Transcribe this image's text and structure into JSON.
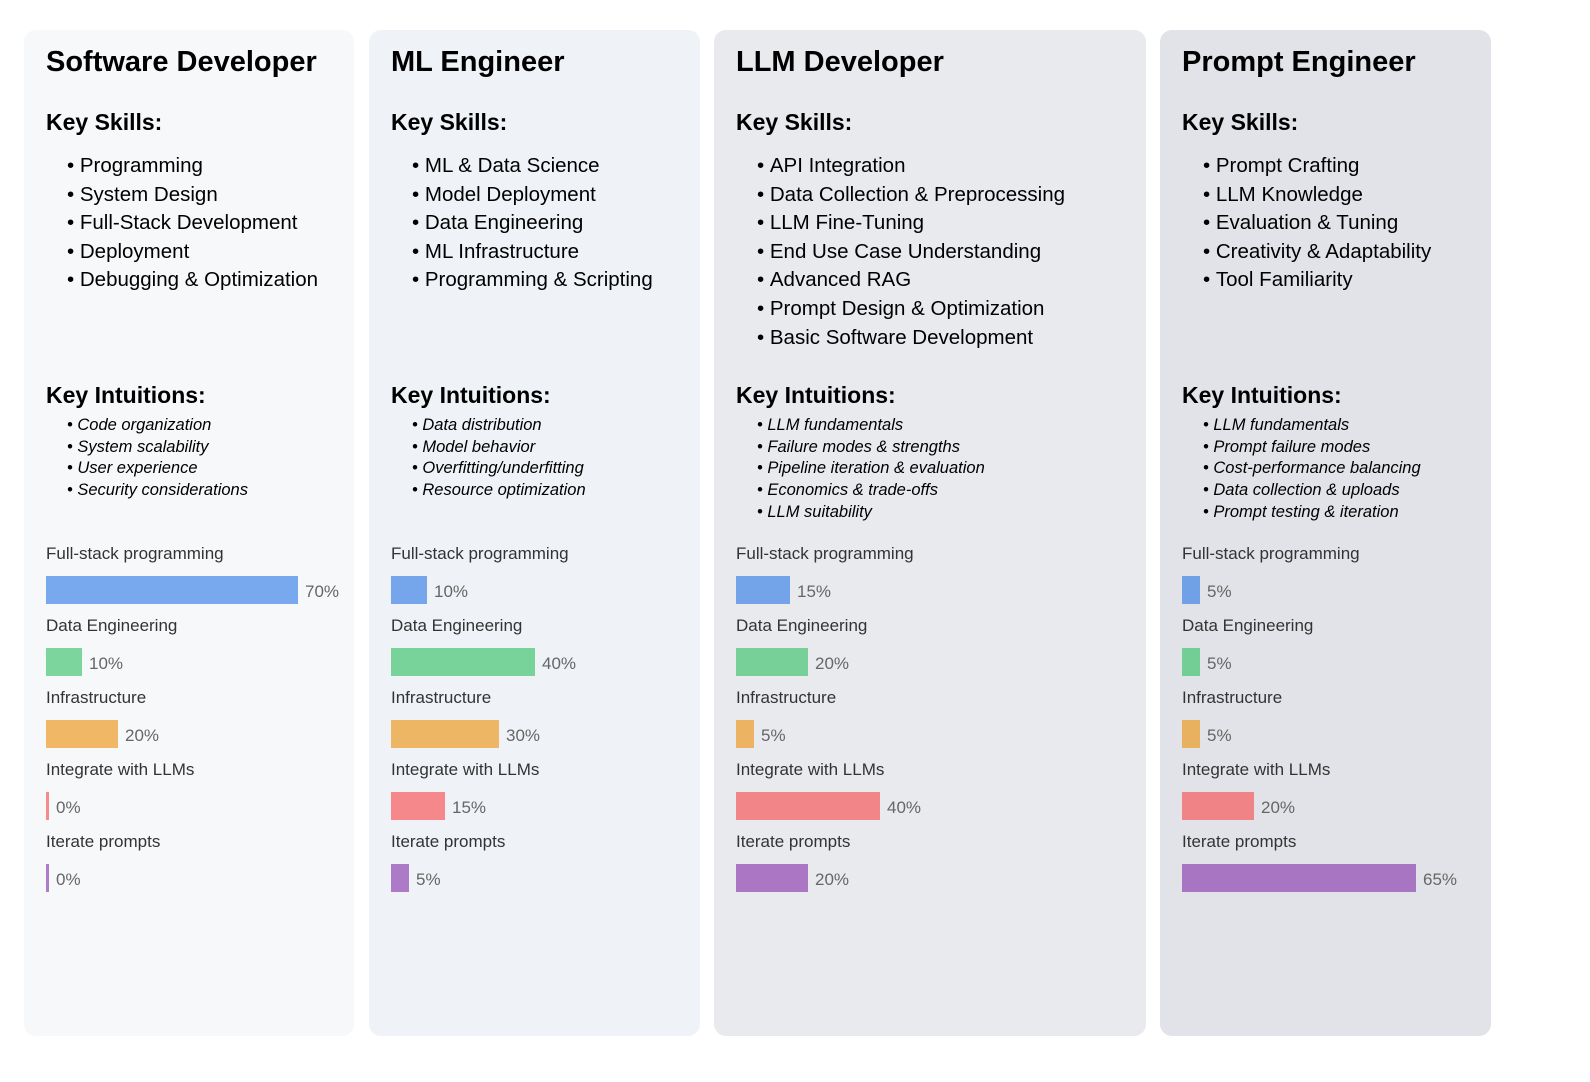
{
  "chart_data": {
    "type": "bar",
    "orientation": "horizontal",
    "xlim": [
      0,
      100
    ],
    "value_unit": "%",
    "categories": [
      "Full-stack programming",
      "Data Engineering",
      "Infrastructure",
      "Integrate with LLMs",
      "Iterate prompts"
    ],
    "series_colors": [
      "#3b82e6",
      "#40c46e",
      "#ec9a1f",
      "#f65555",
      "#8e41b0"
    ],
    "roles": [
      {
        "title": "Software Developer",
        "background": "#f7f8fa",
        "skills_heading": "Key Skills:",
        "skills": [
          "Programming",
          "System Design",
          "Full-Stack Development",
          "Deployment",
          "Debugging & Optimization"
        ],
        "intuitions_heading": "Key Intuitions:",
        "intuitions": [
          "Code organization",
          "System scalability",
          "User experience",
          "Security considerations"
        ],
        "values": [
          70,
          10,
          20,
          0,
          0
        ],
        "value_labels": [
          "70%",
          "10%",
          "20%",
          "0%",
          "0%"
        ]
      },
      {
        "title": "ML Engineer",
        "background": "#eff2f7",
        "skills_heading": "Key Skills:",
        "skills": [
          "ML & Data Science",
          "Model Deployment",
          "Data Engineering",
          "ML Infrastructure",
          "Programming & Scripting"
        ],
        "intuitions_heading": "Key Intuitions:",
        "intuitions": [
          "Data distribution",
          "Model behavior",
          "Overfitting/underfitting",
          "Resource optimization"
        ],
        "values": [
          10,
          40,
          30,
          15,
          5
        ],
        "value_labels": [
          "10%",
          "40%",
          "30%",
          "15%",
          "5%"
        ]
      },
      {
        "title": "LLM Developer",
        "background": "#e9eaee",
        "skills_heading": "Key Skills:",
        "skills": [
          "API Integration",
          "Data Collection & Preprocessing",
          "LLM Fine-Tuning",
          "End Use Case Understanding",
          "Advanced RAG",
          "Prompt Design & Optimization",
          "Basic Software Development"
        ],
        "intuitions_heading": "Key Intuitions:",
        "intuitions": [
          "LLM fundamentals",
          "Failure modes & strengths",
          "Pipeline iteration & evaluation",
          "Economics & trade-offs",
          "LLM suitability"
        ],
        "values": [
          15,
          20,
          5,
          40,
          20
        ],
        "value_labels": [
          "15%",
          "20%",
          "5%",
          "40%",
          "20%"
        ]
      },
      {
        "title": "Prompt Engineer",
        "background": "#e1e3e8",
        "skills_heading": "Key Skills:",
        "skills": [
          "Prompt Crafting",
          "LLM Knowledge",
          "Evaluation & Tuning",
          "Creativity & Adaptability",
          "Tool Familiarity"
        ],
        "intuitions_heading": "Key Intuitions:",
        "intuitions": [
          "LLM fundamentals",
          "Prompt failure modes",
          "Cost-performance balancing",
          "Data collection & uploads",
          "Prompt testing & iteration"
        ],
        "values": [
          5,
          5,
          5,
          20,
          65
        ],
        "value_labels": [
          "5%",
          "5%",
          "5%",
          "20%",
          "65%"
        ]
      }
    ]
  }
}
